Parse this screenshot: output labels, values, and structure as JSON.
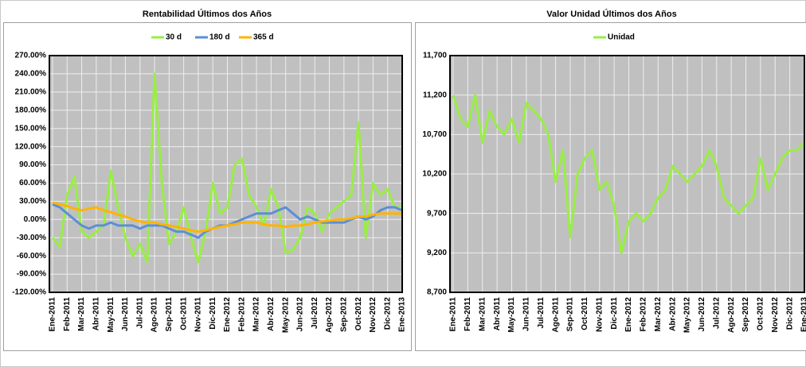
{
  "chart_data": [
    {
      "type": "line",
      "title": "Rentabilidad Últimos dos Años",
      "categories": [
        "Ene-2011",
        null,
        "Feb-2011",
        null,
        "Mar-2011",
        null,
        "Abr-2011",
        null,
        "May-2011",
        null,
        "Jun-2011",
        null,
        "Jul-2011",
        null,
        "Ago-2011",
        null,
        "Sep-2011",
        null,
        "Oct-2011",
        null,
        "Nov-2011",
        null,
        "Dic-2011",
        null,
        "Ene-2012",
        null,
        "Feb-2012",
        null,
        "Mar-2012",
        null,
        "Abr-2012",
        null,
        "May-2012",
        null,
        "Jun-2012",
        null,
        "Jul-2012",
        null,
        "Ago-2012",
        null,
        "Sep-2012",
        null,
        "Oct-2012",
        null,
        "Nov-2012",
        null,
        "Dic-2012",
        null,
        "Ene-2013"
      ],
      "series": [
        {
          "name": "30 d",
          "color": "#99ee44",
          "values": [
            -30,
            -45,
            40,
            70,
            -20,
            -30,
            -20,
            -10,
            80,
            20,
            -30,
            -60,
            -40,
            -70,
            240,
            60,
            -40,
            -20,
            20,
            -30,
            -70,
            -20,
            60,
            10,
            20,
            90,
            100,
            40,
            20,
            -10,
            50,
            20,
            -55,
            -50,
            -30,
            20,
            10,
            -20,
            10,
            20,
            30,
            40,
            160,
            -30,
            60,
            40,
            50,
            20,
            20
          ]
        },
        {
          "name": "180 d",
          "color": "#5b8fd6",
          "values": [
            25,
            20,
            10,
            0,
            -10,
            -15,
            -10,
            -10,
            -5,
            -10,
            -10,
            -10,
            -15,
            -10,
            -10,
            -10,
            -15,
            -20,
            -20,
            -25,
            -30,
            -20,
            -15,
            -10,
            -10,
            -5,
            0,
            5,
            10,
            10,
            10,
            15,
            20,
            10,
            0,
            5,
            0,
            -5,
            -5,
            -5,
            -5,
            0,
            5,
            0,
            5,
            15,
            20,
            20,
            15
          ]
        },
        {
          "name": "365 d",
          "color": "#ffb400",
          "values": [
            28,
            25,
            22,
            18,
            15,
            18,
            20,
            15,
            12,
            8,
            5,
            0,
            -3,
            -5,
            -5,
            -8,
            -10,
            -12,
            -15,
            -18,
            -20,
            -18,
            -15,
            -12,
            -10,
            -8,
            -5,
            -5,
            -5,
            -8,
            -10,
            -10,
            -12,
            -10,
            -10,
            -8,
            -5,
            -3,
            -2,
            0,
            0,
            2,
            5,
            5,
            8,
            10,
            10,
            10,
            10
          ]
        }
      ],
      "ylim": [
        -120,
        270
      ],
      "yticks": [
        {
          "value": -120,
          "label": "-120.00%"
        },
        {
          "value": -90,
          "label": "-90.00%"
        },
        {
          "value": -60,
          "label": "-60.00%"
        },
        {
          "value": -30,
          "label": "-30.00%"
        },
        {
          "value": 0,
          "label": "0.00%"
        },
        {
          "value": 30,
          "label": "30.00%"
        },
        {
          "value": 60,
          "label": "60.00%"
        },
        {
          "value": 90,
          "label": "90.00%"
        },
        {
          "value": 120,
          "label": "120.00%"
        },
        {
          "value": 150,
          "label": "150.00%"
        },
        {
          "value": 180,
          "label": "180.00%"
        },
        {
          "value": 210,
          "label": "210.00%"
        },
        {
          "value": 240,
          "label": "240.00%"
        },
        {
          "value": 270,
          "label": "270.00%"
        }
      ],
      "grid": true
    },
    {
      "type": "line",
      "title": "Valor Unidad Últimos dos Años",
      "categories": [
        "Ene-2011",
        null,
        "Feb-2011",
        null,
        "Mar-2011",
        null,
        "Abr-2011",
        null,
        "May-2011",
        null,
        "Jun-2011",
        null,
        "Jul-2011",
        null,
        "Ago-2011",
        null,
        "Sep-2011",
        null,
        "Oct-2011",
        null,
        "Nov-2011",
        null,
        "Dic-2011",
        null,
        "Ene-2012",
        null,
        "Feb-2012",
        null,
        "Mar-2012",
        null,
        "Abr-2012",
        null,
        "May-2012",
        null,
        "Jun-2012",
        null,
        "Jul-2012",
        null,
        "Ago-2012",
        null,
        "Sep-2012",
        null,
        "Oct-2012",
        null,
        "Nov-2012",
        null,
        "Dic-2012",
        null,
        "Ene-2013"
      ],
      "series": [
        {
          "name": "Unidad",
          "color": "#99ee44",
          "values": [
            11200,
            10900,
            10800,
            11200,
            10600,
            11000,
            10800,
            10700,
            10900,
            10600,
            11100,
            11000,
            10900,
            10700,
            10100,
            10500,
            9400,
            10200,
            10400,
            10500,
            10000,
            10100,
            9800,
            9200,
            9600,
            9700,
            9600,
            9700,
            9900,
            10000,
            10300,
            10200,
            10100,
            10200,
            10300,
            10500,
            10300,
            9900,
            9800,
            9700,
            9800,
            9900,
            10400,
            10000,
            10200,
            10400,
            10500,
            10500,
            10600
          ]
        }
      ],
      "ylim": [
        8700,
        11700
      ],
      "yticks": [
        {
          "value": 8700,
          "label": "8,700"
        },
        {
          "value": 9200,
          "label": "9,200"
        },
        {
          "value": 9700,
          "label": "9,700"
        },
        {
          "value": 10200,
          "label": "10,200"
        },
        {
          "value": 10700,
          "label": "10,700"
        },
        {
          "value": 11200,
          "label": "11,200"
        },
        {
          "value": 11700,
          "label": "11,700"
        }
      ],
      "grid": true
    }
  ]
}
